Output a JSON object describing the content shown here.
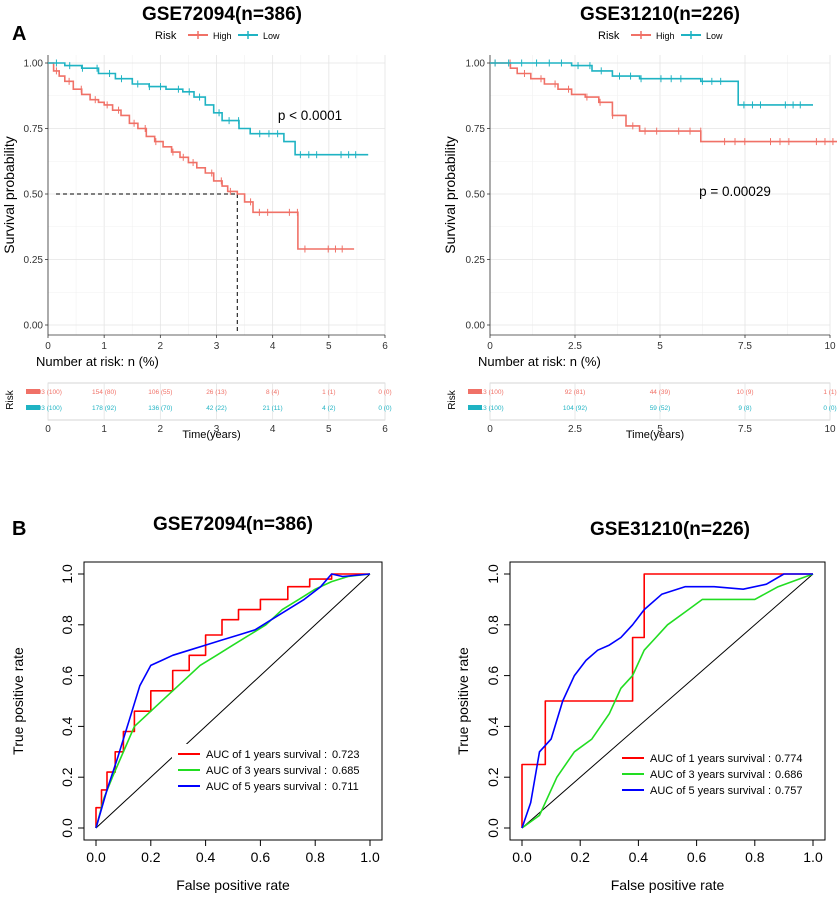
{
  "panel_labels": [
    "A",
    "B"
  ],
  "colors": {
    "high": "#f07167",
    "low": "#1fb3c3",
    "roc1": "#ff0000",
    "roc3": "#22dd22",
    "roc5": "#0000ff"
  },
  "km_legend": {
    "title": "Risk",
    "high": "High",
    "low": "Low"
  },
  "risk_table_title": "Number at risk: n (%)",
  "risk_label": "Risk",
  "chart_data": [
    {
      "id": "km1",
      "type": "line",
      "title": "GSE72094(n=386)",
      "xlabel": "Time(years)",
      "ylabel": "Survival probability",
      "xlim": [
        0,
        6
      ],
      "ylim": [
        0,
        1
      ],
      "xticks": [
        0,
        1,
        2,
        3,
        4,
        5,
        6
      ],
      "xtick_labels": [
        "0",
        "1",
        "2",
        "3",
        "4",
        "5",
        "6"
      ],
      "yticks": [
        0,
        0.25,
        0.5,
        0.75,
        1.0
      ],
      "ytick_labels": [
        "0.00",
        "0.25",
        "0.50",
        "0.75",
        "1.00"
      ],
      "pvalue_text": "p < 0.0001",
      "median_line": {
        "x": 3.37,
        "y": 0.5
      },
      "series": [
        {
          "name": "High",
          "color": "#f07167",
          "x": [
            0,
            0.1,
            0.2,
            0.3,
            0.45,
            0.6,
            0.75,
            0.9,
            1.0,
            1.15,
            1.3,
            1.45,
            1.6,
            1.75,
            1.9,
            2.05,
            2.2,
            2.35,
            2.5,
            2.65,
            2.8,
            2.95,
            3.1,
            3.2,
            3.37,
            3.5,
            3.65,
            4.45,
            5.45
          ],
          "y": [
            1.0,
            0.97,
            0.95,
            0.93,
            0.9,
            0.88,
            0.86,
            0.85,
            0.84,
            0.82,
            0.8,
            0.77,
            0.75,
            0.72,
            0.7,
            0.68,
            0.66,
            0.64,
            0.62,
            0.6,
            0.58,
            0.55,
            0.53,
            0.51,
            0.5,
            0.47,
            0.43,
            0.29,
            0.29
          ]
        },
        {
          "name": "Low",
          "color": "#1fb3c3",
          "x": [
            0,
            0.3,
            0.6,
            0.9,
            1.2,
            1.5,
            1.8,
            2.1,
            2.4,
            2.6,
            2.8,
            2.95,
            3.1,
            3.4,
            3.6,
            3.8,
            4.2,
            4.4,
            5.0,
            5.7
          ],
          "y": [
            1.0,
            0.99,
            0.98,
            0.96,
            0.94,
            0.92,
            0.91,
            0.9,
            0.89,
            0.87,
            0.84,
            0.81,
            0.78,
            0.75,
            0.73,
            0.73,
            0.7,
            0.65,
            0.65,
            0.65
          ]
        }
      ],
      "risk_table": {
        "xticks": [
          0,
          1,
          2,
          3,
          4,
          5,
          6
        ],
        "high": [
          "193 (100)",
          "154 (80)",
          "106 (55)",
          "26 (13)",
          "8 (4)",
          "1 (1)",
          "0 (0)"
        ],
        "low": [
          "193 (100)",
          "178 (92)",
          "136 (70)",
          "42 (22)",
          "21 (11)",
          "4 (2)",
          "0 (0)"
        ]
      }
    },
    {
      "id": "km2",
      "type": "line",
      "title": "GSE31210(n=226)",
      "xlabel": "Time(years)",
      "ylabel": "Survival probability",
      "xlim": [
        0,
        10
      ],
      "ylim": [
        0,
        1
      ],
      "xticks": [
        0,
        2.5,
        5,
        7.5,
        10
      ],
      "xtick_labels": [
        "0",
        "2.5",
        "5",
        "7.5",
        "10"
      ],
      "yticks": [
        0,
        0.25,
        0.5,
        0.75,
        1.0
      ],
      "ytick_labels": [
        "0.00",
        "0.25",
        "0.50",
        "0.75",
        "1.00"
      ],
      "pvalue_text": "p = 0.00029",
      "series": [
        {
          "name": "High",
          "color": "#f07167",
          "x": [
            0,
            0.6,
            0.8,
            1.2,
            1.6,
            2.0,
            2.4,
            2.8,
            3.2,
            3.6,
            4.0,
            4.4,
            5.0,
            6.2,
            10.5
          ],
          "y": [
            1.0,
            0.98,
            0.96,
            0.94,
            0.92,
            0.9,
            0.88,
            0.87,
            0.85,
            0.8,
            0.76,
            0.74,
            0.74,
            0.7,
            0.7
          ]
        },
        {
          "name": "Low",
          "color": "#1fb3c3",
          "x": [
            0,
            2.4,
            3.0,
            3.6,
            4.4,
            5.2,
            6.2,
            7.3,
            9.5
          ],
          "y": [
            1.0,
            0.99,
            0.97,
            0.95,
            0.94,
            0.94,
            0.93,
            0.84,
            0.84
          ]
        }
      ],
      "risk_table": {
        "xticks": [
          0,
          2.5,
          5,
          7.5,
          10
        ],
        "high": [
          "113 (100)",
          "92 (81)",
          "44 (39)",
          "10 (9)",
          "1 (1)"
        ],
        "low": [
          "113 (100)",
          "104 (92)",
          "59 (52)",
          "9 (8)",
          "0 (0)"
        ]
      }
    },
    {
      "id": "roc1",
      "type": "line",
      "title": "GSE72094(n=386)",
      "xlabel": "False positive rate",
      "ylabel": "True positive rate",
      "xlim": [
        0,
        1
      ],
      "ylim": [
        0,
        1
      ],
      "ticks": [
        0,
        0.2,
        0.4,
        0.6,
        0.8,
        1.0
      ],
      "tick_labels": [
        "0.0",
        "0.2",
        "0.4",
        "0.6",
        "0.8",
        "1.0"
      ],
      "series": [
        {
          "name": "AUC of 1 years survival :",
          "auc": "0.723",
          "color": "#ff0000",
          "x": [
            0,
            0.0,
            0.02,
            0.02,
            0.04,
            0.04,
            0.07,
            0.07,
            0.1,
            0.1,
            0.14,
            0.14,
            0.2,
            0.2,
            0.28,
            0.28,
            0.34,
            0.34,
            0.4,
            0.4,
            0.46,
            0.46,
            0.52,
            0.52,
            0.6,
            0.6,
            0.7,
            0.7,
            0.78,
            0.78,
            0.86,
            0.86,
            1.0
          ],
          "y": [
            0,
            0.08,
            0.08,
            0.15,
            0.15,
            0.22,
            0.22,
            0.3,
            0.3,
            0.38,
            0.38,
            0.46,
            0.46,
            0.54,
            0.54,
            0.62,
            0.62,
            0.68,
            0.68,
            0.76,
            0.76,
            0.82,
            0.82,
            0.86,
            0.86,
            0.9,
            0.9,
            0.95,
            0.95,
            0.98,
            0.98,
            1.0,
            1.0
          ]
        },
        {
          "name": "AUC of 3 years survival :",
          "auc": "0.685",
          "color": "#22dd22",
          "x": [
            0,
            0.03,
            0.06,
            0.1,
            0.14,
            0.2,
            0.26,
            0.32,
            0.38,
            0.44,
            0.5,
            0.56,
            0.62,
            0.68,
            0.74,
            0.8,
            0.86,
            0.92,
            1.0
          ],
          "y": [
            0,
            0.12,
            0.2,
            0.3,
            0.4,
            0.46,
            0.52,
            0.58,
            0.64,
            0.68,
            0.72,
            0.76,
            0.8,
            0.86,
            0.9,
            0.94,
            0.97,
            0.99,
            1.0
          ]
        },
        {
          "name": "AUC of 5 years survival :",
          "auc": "0.711",
          "color": "#0000ff",
          "x": [
            0,
            0.04,
            0.08,
            0.12,
            0.16,
            0.2,
            0.24,
            0.28,
            0.34,
            0.4,
            0.46,
            0.52,
            0.58,
            0.64,
            0.7,
            0.76,
            0.82,
            0.86,
            0.9,
            1.0
          ],
          "y": [
            0,
            0.15,
            0.28,
            0.42,
            0.56,
            0.64,
            0.66,
            0.68,
            0.7,
            0.72,
            0.74,
            0.76,
            0.78,
            0.82,
            0.86,
            0.9,
            0.95,
            1.0,
            0.99,
            1.0
          ]
        }
      ],
      "diagonal": true
    },
    {
      "id": "roc2",
      "type": "line",
      "title": "GSE31210(n=226)",
      "xlabel": "False positive rate",
      "ylabel": "True positive rate",
      "xlim": [
        0,
        1
      ],
      "ylim": [
        0,
        1
      ],
      "ticks": [
        0,
        0.2,
        0.4,
        0.6,
        0.8,
        1.0
      ],
      "tick_labels": [
        "0.0",
        "0.2",
        "0.4",
        "0.6",
        "0.8",
        "1.0"
      ],
      "series": [
        {
          "name": "AUC of 1 years survival :",
          "auc": "0.774",
          "color": "#ff0000",
          "x": [
            0,
            0.0,
            0.02,
            0.02,
            0.08,
            0.08,
            0.38,
            0.38,
            0.42,
            0.42,
            1.0
          ],
          "y": [
            0,
            0.25,
            0.25,
            0.25,
            0.25,
            0.5,
            0.5,
            0.75,
            0.75,
            1.0,
            1.0
          ]
        },
        {
          "name": "AUC of 3 years survival :",
          "auc": "0.686",
          "color": "#22dd22",
          "x": [
            0,
            0.06,
            0.12,
            0.18,
            0.24,
            0.3,
            0.34,
            0.38,
            0.42,
            0.46,
            0.5,
            0.56,
            0.62,
            0.7,
            0.8,
            0.88,
            1.0
          ],
          "y": [
            0,
            0.05,
            0.2,
            0.3,
            0.35,
            0.45,
            0.55,
            0.6,
            0.7,
            0.75,
            0.8,
            0.85,
            0.9,
            0.9,
            0.9,
            0.95,
            1.0
          ]
        },
        {
          "name": "AUC of 5 years survival :",
          "auc": "0.757",
          "color": "#0000ff",
          "x": [
            0,
            0.03,
            0.06,
            0.1,
            0.14,
            0.18,
            0.22,
            0.26,
            0.3,
            0.34,
            0.38,
            0.42,
            0.48,
            0.56,
            0.66,
            0.76,
            0.84,
            0.9,
            1.0
          ],
          "y": [
            0,
            0.1,
            0.3,
            0.35,
            0.5,
            0.6,
            0.66,
            0.7,
            0.72,
            0.75,
            0.8,
            0.86,
            0.92,
            0.95,
            0.95,
            0.94,
            0.96,
            1.0,
            1.0
          ]
        }
      ],
      "diagonal": true
    }
  ]
}
